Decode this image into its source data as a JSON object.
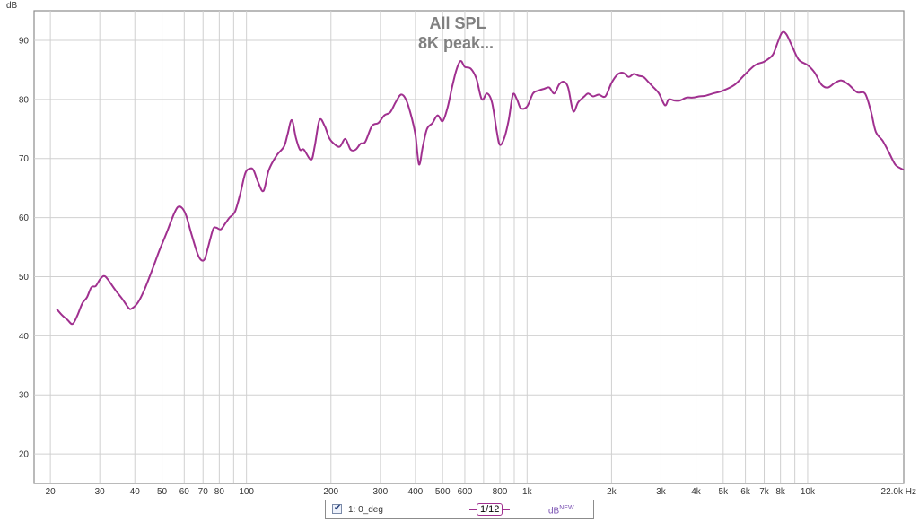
{
  "chart_data": {
    "type": "line",
    "title": "All SPL",
    "subtitle": "8K peak...",
    "ylabel": "dB",
    "x_unit": "Hz",
    "x_scale": "log",
    "xlim": [
      17.5,
      22000
    ],
    "ylim": [
      15,
      95
    ],
    "grid": true,
    "x_ticks": [
      {
        "v": 20,
        "label": "20"
      },
      {
        "v": 30,
        "label": "30"
      },
      {
        "v": 40,
        "label": "40"
      },
      {
        "v": 50,
        "label": "50"
      },
      {
        "v": 60,
        "label": "60"
      },
      {
        "v": 70,
        "label": "70"
      },
      {
        "v": 80,
        "label": "80"
      },
      {
        "v": 100,
        "label": "100"
      },
      {
        "v": 200,
        "label": "200"
      },
      {
        "v": 300,
        "label": "300"
      },
      {
        "v": 400,
        "label": "400"
      },
      {
        "v": 500,
        "label": "500"
      },
      {
        "v": 600,
        "label": "600"
      },
      {
        "v": 800,
        "label": "800"
      },
      {
        "v": 1000,
        "label": "1k"
      },
      {
        "v": 2000,
        "label": "2k"
      },
      {
        "v": 3000,
        "label": "3k"
      },
      {
        "v": 4000,
        "label": "4k"
      },
      {
        "v": 5000,
        "label": "5k"
      },
      {
        "v": 6000,
        "label": "6k"
      },
      {
        "v": 7000,
        "label": "7k"
      },
      {
        "v": 8000,
        "label": "8k"
      },
      {
        "v": 10000,
        "label": "10k"
      },
      {
        "v": 22000,
        "label": "22.0k Hz"
      }
    ],
    "x_minor_grid": [
      90,
      700,
      900,
      9000
    ],
    "y_ticks": [
      20,
      30,
      40,
      50,
      60,
      70,
      80,
      90
    ],
    "series": [
      {
        "name": "1: 0_deg",
        "color": "#a0308f",
        "points": [
          [
            21,
            44.6
          ],
          [
            22,
            43.5
          ],
          [
            23,
            42.7
          ],
          [
            24,
            42.0
          ],
          [
            25,
            43.5
          ],
          [
            26,
            45.5
          ],
          [
            27,
            46.5
          ],
          [
            28,
            48.2
          ],
          [
            29,
            48.4
          ],
          [
            30,
            49.5
          ],
          [
            31,
            50.1
          ],
          [
            32,
            49.6
          ],
          [
            34,
            47.8
          ],
          [
            36,
            46.3
          ],
          [
            38,
            44.7
          ],
          [
            39,
            44.6
          ],
          [
            41,
            45.6
          ],
          [
            43,
            47.5
          ],
          [
            46,
            51.0
          ],
          [
            49,
            54.5
          ],
          [
            52,
            57.5
          ],
          [
            55,
            60.5
          ],
          [
            57,
            61.8
          ],
          [
            59,
            61.6
          ],
          [
            61,
            60.3
          ],
          [
            64,
            56.8
          ],
          [
            67,
            53.8
          ],
          [
            69,
            52.8
          ],
          [
            71,
            53.0
          ],
          [
            73,
            55.0
          ],
          [
            76,
            58.0
          ],
          [
            78,
            58.3
          ],
          [
            81,
            58.0
          ],
          [
            84,
            59.0
          ],
          [
            87,
            60.0
          ],
          [
            91,
            61.0
          ],
          [
            95,
            64.0
          ],
          [
            99,
            67.5
          ],
          [
            103,
            68.3
          ],
          [
            106,
            68.0
          ],
          [
            110,
            66.0
          ],
          [
            115,
            64.5
          ],
          [
            120,
            68.0
          ],
          [
            128,
            70.5
          ],
          [
            136,
            72.0
          ],
          [
            140,
            74.0
          ],
          [
            145,
            76.5
          ],
          [
            150,
            73.5
          ],
          [
            155,
            71.5
          ],
          [
            160,
            71.5
          ],
          [
            170,
            69.8
          ],
          [
            175,
            72.0
          ],
          [
            182,
            76.5
          ],
          [
            190,
            75.5
          ],
          [
            197,
            73.5
          ],
          [
            205,
            72.5
          ],
          [
            215,
            72.0
          ],
          [
            225,
            73.3
          ],
          [
            235,
            71.5
          ],
          [
            245,
            71.5
          ],
          [
            255,
            72.5
          ],
          [
            265,
            72.8
          ],
          [
            280,
            75.5
          ],
          [
            295,
            76.0
          ],
          [
            310,
            77.3
          ],
          [
            325,
            77.8
          ],
          [
            340,
            79.5
          ],
          [
            355,
            80.8
          ],
          [
            370,
            80.0
          ],
          [
            385,
            77.5
          ],
          [
            400,
            74.0
          ],
          [
            412,
            69.0
          ],
          [
            425,
            72.0
          ],
          [
            440,
            75.0
          ],
          [
            460,
            76.0
          ],
          [
            480,
            77.3
          ],
          [
            500,
            76.3
          ],
          [
            520,
            78.5
          ],
          [
            540,
            82.0
          ],
          [
            560,
            85.0
          ],
          [
            580,
            86.5
          ],
          [
            600,
            85.5
          ],
          [
            630,
            85.2
          ],
          [
            660,
            83.5
          ],
          [
            690,
            80.0
          ],
          [
            720,
            81.0
          ],
          [
            750,
            79.5
          ],
          [
            780,
            74.5
          ],
          [
            800,
            72.3
          ],
          [
            830,
            73.5
          ],
          [
            860,
            76.5
          ],
          [
            890,
            80.8
          ],
          [
            920,
            80.0
          ],
          [
            950,
            78.5
          ],
          [
            1000,
            78.8
          ],
          [
            1050,
            81.0
          ],
          [
            1100,
            81.5
          ],
          [
            1150,
            81.8
          ],
          [
            1200,
            82.0
          ],
          [
            1250,
            81.0
          ],
          [
            1300,
            82.5
          ],
          [
            1350,
            83.0
          ],
          [
            1400,
            82.0
          ],
          [
            1460,
            78.0
          ],
          [
            1520,
            79.5
          ],
          [
            1600,
            80.5
          ],
          [
            1650,
            81.0
          ],
          [
            1720,
            80.5
          ],
          [
            1800,
            80.8
          ],
          [
            1900,
            80.5
          ],
          [
            2000,
            82.8
          ],
          [
            2100,
            84.2
          ],
          [
            2200,
            84.5
          ],
          [
            2300,
            83.8
          ],
          [
            2400,
            84.3
          ],
          [
            2500,
            84.0
          ],
          [
            2600,
            83.8
          ],
          [
            2700,
            83.0
          ],
          [
            2800,
            82.2
          ],
          [
            2950,
            81.0
          ],
          [
            3100,
            79.0
          ],
          [
            3200,
            80.0
          ],
          [
            3350,
            79.8
          ],
          [
            3500,
            79.8
          ],
          [
            3700,
            80.3
          ],
          [
            3900,
            80.3
          ],
          [
            4100,
            80.5
          ],
          [
            4300,
            80.6
          ],
          [
            4600,
            81.0
          ],
          [
            5000,
            81.5
          ],
          [
            5500,
            82.5
          ],
          [
            6000,
            84.3
          ],
          [
            6500,
            85.8
          ],
          [
            7000,
            86.4
          ],
          [
            7500,
            87.5
          ],
          [
            7800,
            89.5
          ],
          [
            8100,
            91.3
          ],
          [
            8400,
            91.0
          ],
          [
            8800,
            89.0
          ],
          [
            9300,
            86.7
          ],
          [
            10000,
            85.8
          ],
          [
            10600,
            84.5
          ],
          [
            11200,
            82.5
          ],
          [
            11800,
            82.0
          ],
          [
            12500,
            82.8
          ],
          [
            13200,
            83.2
          ],
          [
            14000,
            82.5
          ],
          [
            15000,
            81.2
          ],
          [
            16000,
            81.0
          ],
          [
            16800,
            78.0
          ],
          [
            17500,
            74.5
          ],
          [
            18500,
            73.0
          ],
          [
            19500,
            71.0
          ],
          [
            20500,
            69.0
          ],
          [
            21500,
            68.3
          ],
          [
            22000,
            68.1
          ]
        ]
      }
    ]
  },
  "legend": {
    "checkbox_checked": true,
    "series_label": "1: 0_deg",
    "smoothing_label": "1/12",
    "unit_label": "dB",
    "unit_superscript": "NEW"
  }
}
